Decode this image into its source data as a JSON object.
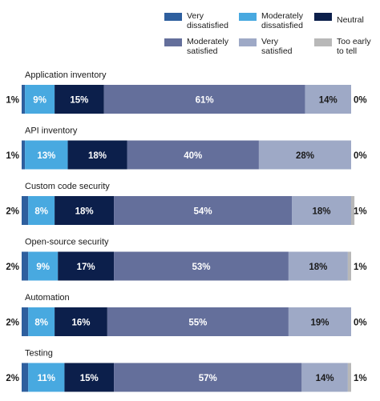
{
  "chart_data": {
    "type": "bar",
    "orientation": "horizontal",
    "stacked": true,
    "legend_placement": "top-right",
    "grid": false,
    "xlim": [
      0,
      100
    ],
    "categories": [
      "Application inventory",
      "API inventory",
      "Custom code security",
      "Open-source security",
      "Automation",
      "Testing"
    ],
    "series": [
      {
        "name": "Very dissatisfied",
        "color": "#2e5f9e",
        "values": [
          1,
          1,
          2,
          2,
          2,
          2
        ]
      },
      {
        "name": "Moderately dissatisfied",
        "color": "#48a9e0",
        "values": [
          9,
          13,
          8,
          9,
          8,
          11
        ]
      },
      {
        "name": "Neutral",
        "color": "#0c1f4b",
        "values": [
          15,
          18,
          18,
          17,
          16,
          15
        ]
      },
      {
        "name": "Moderately satisfied",
        "color": "#646f9b",
        "values": [
          61,
          40,
          54,
          53,
          55,
          57
        ]
      },
      {
        "name": "Very satisfied",
        "color": "#9ea9c6",
        "values": [
          14,
          28,
          18,
          18,
          19,
          14
        ]
      },
      {
        "name": "Too early to tell",
        "color": "#b8b8b8",
        "values": [
          0,
          0,
          1,
          1,
          0,
          1
        ]
      }
    ],
    "legend_labels": [
      "Very\ndissatisfied",
      "Moderately\ndissatisfied",
      "Neutral",
      "Moderately\nsatisfied",
      "Very\nsatisfied",
      "Too early\nto tell"
    ],
    "value_labels": [
      [
        "1%",
        "9%",
        "15%",
        "61%",
        "14%",
        "0%"
      ],
      [
        "1%",
        "13%",
        "18%",
        "40%",
        "28%",
        "0%"
      ],
      [
        "2%",
        "8%",
        "18%",
        "54%",
        "18%",
        "1%"
      ],
      [
        "2%",
        "9%",
        "17%",
        "53%",
        "18%",
        "1%"
      ],
      [
        "2%",
        "8%",
        "16%",
        "55%",
        "19%",
        "0%"
      ],
      [
        "2%",
        "11%",
        "15%",
        "57%",
        "14%",
        "1%"
      ]
    ]
  }
}
